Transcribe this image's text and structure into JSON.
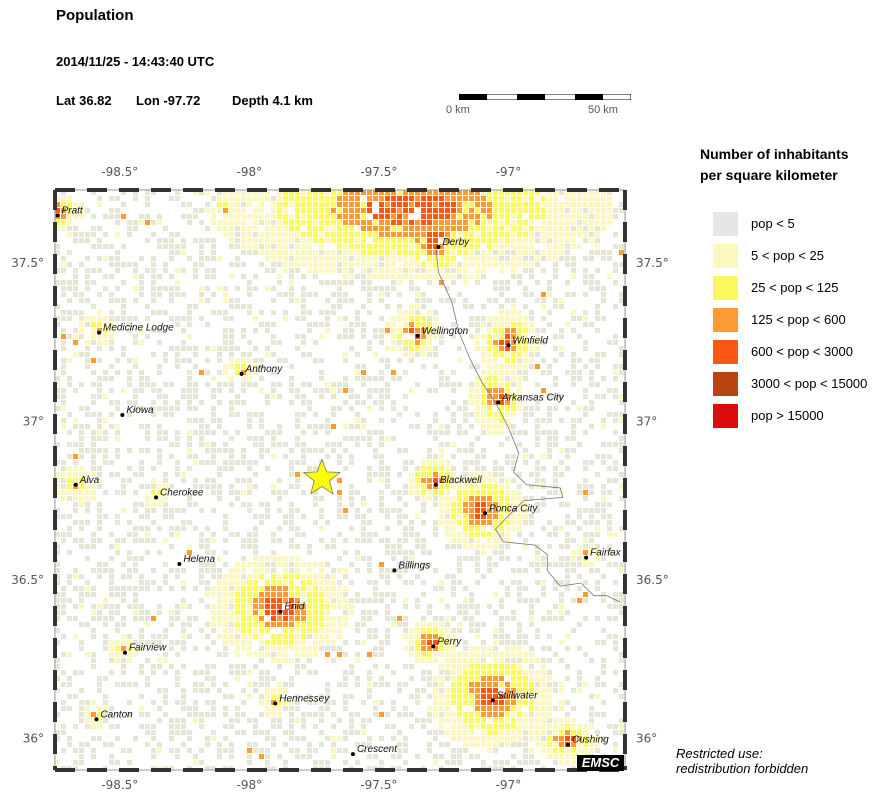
{
  "header": {
    "title": "Population",
    "datetime": "2014/11/25 - 14:43:40 UTC",
    "lat": "Lat 36.82",
    "lon": "Lon -97.72",
    "depth": "Depth  4.1 km"
  },
  "scale": {
    "left_label": "0 km",
    "right_label": "50 km"
  },
  "map": {
    "lon_range": [
      -98.75,
      -96.55
    ],
    "lat_range": [
      35.9,
      37.73
    ],
    "lon_ticks": [
      {
        "value": -98.5,
        "label": "-98.5°"
      },
      {
        "value": -98.0,
        "label": "-98°"
      },
      {
        "value": -97.5,
        "label": "-97.5°"
      },
      {
        "value": -97.0,
        "label": "-97°"
      }
    ],
    "lat_ticks": [
      {
        "value": 37.5,
        "label": "37.5°"
      },
      {
        "value": 37.0,
        "label": "37°"
      },
      {
        "value": 36.5,
        "label": "36.5°"
      },
      {
        "value": 36.0,
        "label": "36°"
      }
    ],
    "epicenter": {
      "lat": 36.82,
      "lon": -97.72,
      "color": "#ffff00"
    },
    "cities": [
      {
        "name": "Pratt",
        "lon": -98.74,
        "lat": 37.65
      },
      {
        "name": "Derby",
        "lon": -97.27,
        "lat": 37.55
      },
      {
        "name": "Medicine Lodge",
        "lon": -98.58,
        "lat": 37.28
      },
      {
        "name": "Wellington",
        "lon": -97.35,
        "lat": 37.27
      },
      {
        "name": "Winfield",
        "lon": -97.0,
        "lat": 37.24
      },
      {
        "name": "Anthony",
        "lon": -98.03,
        "lat": 37.15
      },
      {
        "name": "Arkansas City",
        "lon": -97.04,
        "lat": 37.06
      },
      {
        "name": "Kiowa",
        "lon": -98.49,
        "lat": 37.02
      },
      {
        "name": "Alva",
        "lon": -98.67,
        "lat": 36.8
      },
      {
        "name": "Blackwell",
        "lon": -97.28,
        "lat": 36.8
      },
      {
        "name": "Cherokee",
        "lon": -98.36,
        "lat": 36.76
      },
      {
        "name": "Ponca City",
        "lon": -97.09,
        "lat": 36.71
      },
      {
        "name": "Fairfax",
        "lon": -96.7,
        "lat": 36.57
      },
      {
        "name": "Helena",
        "lon": -98.27,
        "lat": 36.55
      },
      {
        "name": "Billings",
        "lon": -97.44,
        "lat": 36.53
      },
      {
        "name": "Enid",
        "lon": -97.88,
        "lat": 36.4
      },
      {
        "name": "Perry",
        "lon": -97.29,
        "lat": 36.29
      },
      {
        "name": "Fairview",
        "lon": -98.48,
        "lat": 36.27
      },
      {
        "name": "Stillwater",
        "lon": -97.06,
        "lat": 36.12
      },
      {
        "name": "Hennessey",
        "lon": -97.9,
        "lat": 36.11
      },
      {
        "name": "Canton",
        "lon": -98.59,
        "lat": 36.06
      },
      {
        "name": "Cushing",
        "lon": -96.77,
        "lat": 35.98
      },
      {
        "name": "Crescent",
        "lon": -97.6,
        "lat": 35.95
      }
    ],
    "urban_areas": [
      {
        "lon": -97.37,
        "lat": 37.67,
        "rx": 45,
        "ry": 16,
        "level": 4
      },
      {
        "lon": -97.28,
        "lat": 37.57,
        "rx": 10,
        "ry": 9,
        "level": 4
      },
      {
        "lon": -97.88,
        "lat": 36.41,
        "rx": 16,
        "ry": 12,
        "level": 4
      },
      {
        "lon": -97.06,
        "lat": 36.13,
        "rx": 14,
        "ry": 12,
        "level": 4
      },
      {
        "lon": -97.1,
        "lat": 36.72,
        "rx": 10,
        "ry": 9,
        "level": 4
      },
      {
        "lon": -97.04,
        "lat": 37.07,
        "rx": 6,
        "ry": 8,
        "level": 4
      },
      {
        "lon": -97.0,
        "lat": 37.25,
        "rx": 7,
        "ry": 7,
        "level": 4
      },
      {
        "lon": -97.36,
        "lat": 37.28,
        "rx": 6,
        "ry": 6,
        "level": 4
      },
      {
        "lon": -97.29,
        "lat": 36.81,
        "rx": 6,
        "ry": 5,
        "level": 4
      },
      {
        "lon": -97.3,
        "lat": 36.3,
        "rx": 6,
        "ry": 5,
        "level": 4
      },
      {
        "lon": -96.77,
        "lat": 35.99,
        "rx": 7,
        "ry": 5,
        "level": 4
      },
      {
        "lon": -98.74,
        "lat": 37.66,
        "rx": 6,
        "ry": 4,
        "level": 4
      },
      {
        "lon": -98.67,
        "lat": 36.8,
        "rx": 5,
        "ry": 4,
        "level": 3
      },
      {
        "lon": -98.58,
        "lat": 37.29,
        "rx": 4,
        "ry": 4,
        "level": 3
      },
      {
        "lon": -98.03,
        "lat": 37.16,
        "rx": 4,
        "ry": 3,
        "level": 3
      },
      {
        "lon": -98.48,
        "lat": 36.28,
        "rx": 4,
        "ry": 3,
        "level": 3
      },
      {
        "lon": -98.36,
        "lat": 36.77,
        "rx": 3,
        "ry": 3,
        "level": 3
      },
      {
        "lon": -97.9,
        "lat": 36.12,
        "rx": 3,
        "ry": 4,
        "level": 3
      },
      {
        "lon": -98.59,
        "lat": 36.07,
        "rx": 3,
        "ry": 3,
        "level": 3
      },
      {
        "lon": -96.7,
        "lat": 36.58,
        "rx": 3,
        "ry": 3,
        "level": 3
      },
      {
        "lon": -98.1,
        "lat": 37.67,
        "rx": 4,
        "ry": 3,
        "level": 3
      }
    ],
    "river": [
      [
        -97.28,
        37.55
      ],
      [
        -97.27,
        37.47
      ],
      [
        -97.22,
        37.38
      ],
      [
        -97.19,
        37.28
      ],
      [
        -97.15,
        37.2
      ],
      [
        -97.1,
        37.12
      ],
      [
        -97.05,
        37.06
      ],
      [
        -97.0,
        36.98
      ],
      [
        -96.96,
        36.9
      ],
      [
        -96.98,
        36.84
      ],
      [
        -96.93,
        36.8
      ],
      [
        -96.8,
        36.79
      ],
      [
        -96.79,
        36.76
      ],
      [
        -96.94,
        36.75
      ],
      [
        -96.99,
        36.71
      ],
      [
        -97.05,
        36.66
      ],
      [
        -97.02,
        36.62
      ],
      [
        -96.9,
        36.61
      ],
      [
        -96.85,
        36.58
      ],
      [
        -96.85,
        36.53
      ],
      [
        -96.8,
        36.48
      ],
      [
        -96.72,
        36.49
      ],
      [
        -96.67,
        36.45
      ],
      [
        -96.62,
        36.45
      ],
      [
        -96.57,
        36.43
      ]
    ],
    "emsc_label": "EMSC"
  },
  "legend": {
    "title_line1": "Number of inhabitants",
    "title_line2": "per square kilometer",
    "items": [
      {
        "label": "pop < 5",
        "color": "#e6e6e6"
      },
      {
        "label": "5 < pop < 25",
        "color": "#fbf7bf"
      },
      {
        "label": "25 < pop < 125",
        "color": "#fafa5e"
      },
      {
        "label": "125 < pop < 600",
        "color": "#fb9b34"
      },
      {
        "label": "600 < pop < 3000",
        "color": "#fb5614"
      },
      {
        "label": "3000 < pop < 15000",
        "color": "#b84414"
      },
      {
        "label": "pop > 15000",
        "color": "#dd0c0c"
      }
    ]
  },
  "footer": {
    "restricted_line1": "Restricted use:",
    "restricted_line2": "redistribution forbidden"
  }
}
